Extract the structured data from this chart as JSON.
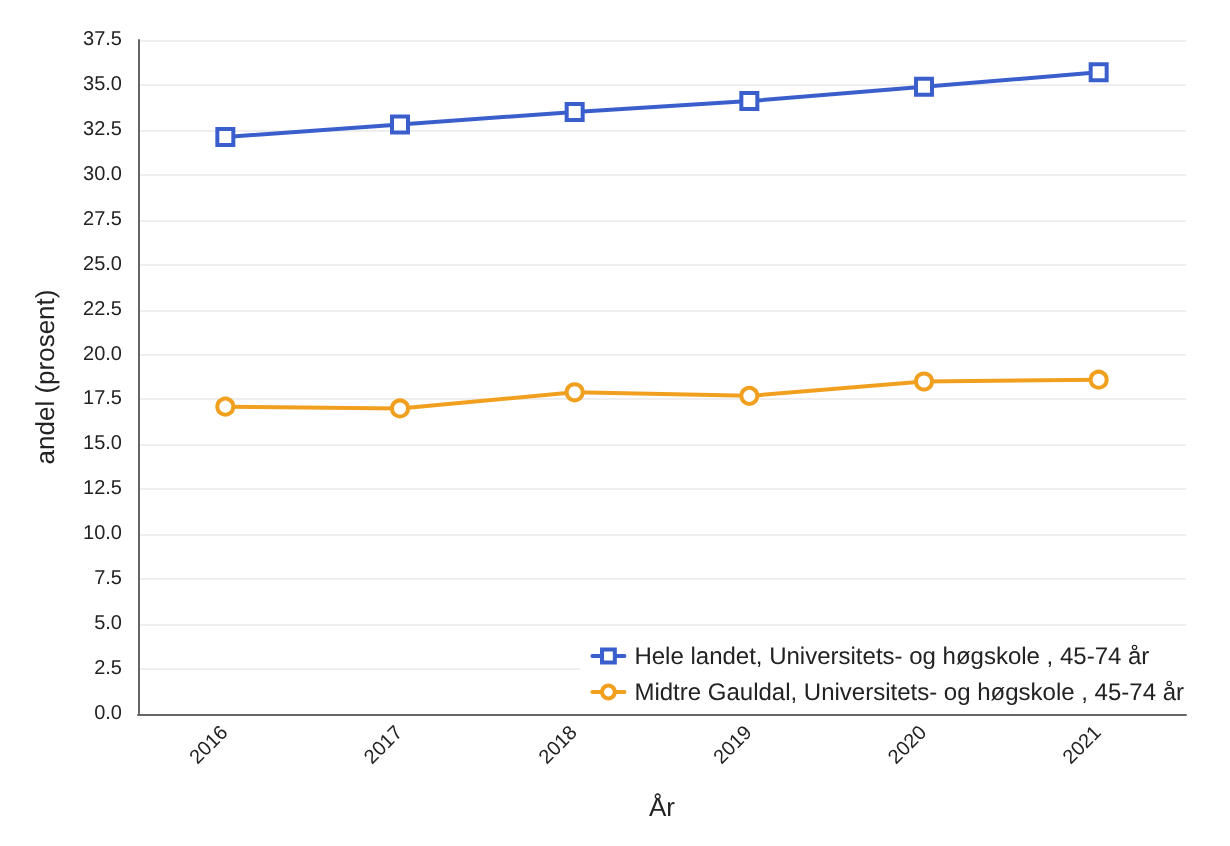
{
  "chart_data": {
    "type": "line",
    "xlabel": "År",
    "ylabel": "andel (prosent)",
    "categories": [
      "2016",
      "2017",
      "2018",
      "2019",
      "2020",
      "2021"
    ],
    "series": [
      {
        "name": "Hele landet, Universitets- og høgskole , 45-74 år",
        "color": "#3a5fcd",
        "marker": "square",
        "values": [
          32.1,
          32.8,
          33.5,
          34.1,
          34.9,
          35.7
        ]
      },
      {
        "name": "Midtre Gauldal, Universitets- og høgskole , 45-74 år",
        "color": "#f0a01e",
        "marker": "circle",
        "values": [
          17.1,
          17.0,
          17.9,
          17.7,
          18.5,
          18.6
        ]
      }
    ],
    "ylim": [
      0,
      37.5
    ],
    "yticks": [
      {
        "value": 0,
        "label": "0.0"
      },
      2.5,
      {
        "value": 5,
        "label": "5.0"
      },
      7.5,
      {
        "value": 10,
        "label": "10.0"
      },
      12.5,
      {
        "value": 15,
        "label": "15.0"
      },
      17.5,
      {
        "value": 20,
        "label": "20.0"
      },
      22.5,
      {
        "value": 25,
        "label": "25.0"
      },
      27.5,
      {
        "value": 30,
        "label": "30.0"
      },
      32.5,
      {
        "value": 35,
        "label": "35.0"
      },
      37.5
    ],
    "grid": "y",
    "legend": "bottom right",
    "line_style": "solid"
  }
}
